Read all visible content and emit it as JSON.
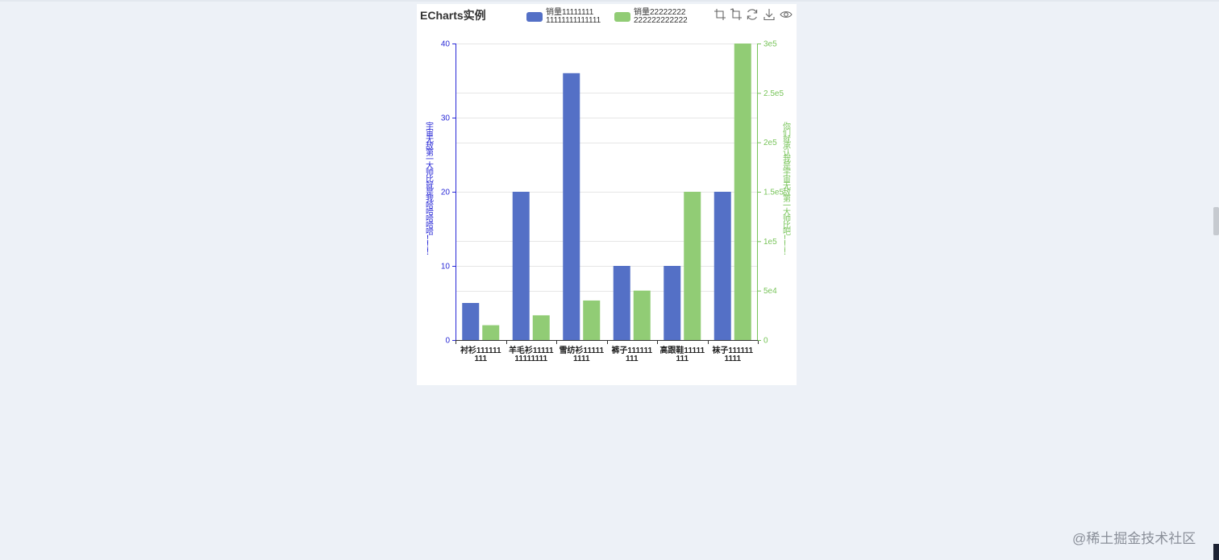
{
  "chart_data": {
    "type": "bar",
    "title": "ECharts实例",
    "categories": [
      "衬衫111111111",
      "羊毛衫1111111111111",
      "雪纺衫111111111",
      "裤子111111111",
      "高跟鞋11111111",
      "袜子1111111111"
    ],
    "category_label_lines": [
      [
        "衬衫111111",
        "111"
      ],
      [
        "羊毛衫11111",
        "11111111"
      ],
      [
        "雪纺衫11111",
        "1111"
      ],
      [
        "裤子111111",
        "111"
      ],
      [
        "高跟鞋11111",
        "111"
      ],
      [
        "袜子111111",
        "1111"
      ]
    ],
    "series": [
      {
        "name": "销量11111111\n11111111111111",
        "color": "#5470c6",
        "y_axis": "left",
        "values": [
          5,
          20,
          36,
          10,
          10,
          20
        ]
      },
      {
        "name": "销量22222222\n222222222222",
        "color": "#91cc75",
        "y_axis": "right",
        "values": [
          15000,
          25000,
          40000,
          50000,
          150000,
          300000
        ]
      }
    ],
    "y_axis_left": {
      "label": "宇宙无敌第一大帅比就是我哈哈哈哈哈！！！",
      "range": [
        0,
        40
      ],
      "ticks": [
        "0",
        "10",
        "20",
        "30",
        "40"
      ],
      "color": "#2929d6"
    },
    "y_axis_right": {
      "label": "你们就承认我是宇宙无敌第一大帅比吧！！！",
      "range": [
        0,
        300000
      ],
      "ticks": [
        "0",
        "5e4",
        "1e5",
        "1.5e5",
        "2e5",
        "2.5e5",
        "3e5"
      ],
      "color": "#78c45a"
    },
    "grid": true,
    "legend_position": "top-center"
  },
  "toolbox": {
    "icons": [
      "zoom-select-icon",
      "zoom-reset-icon",
      "restore-icon",
      "save-image-icon",
      "data-view-icon"
    ]
  },
  "watermark": "@稀土掘金技术社区"
}
